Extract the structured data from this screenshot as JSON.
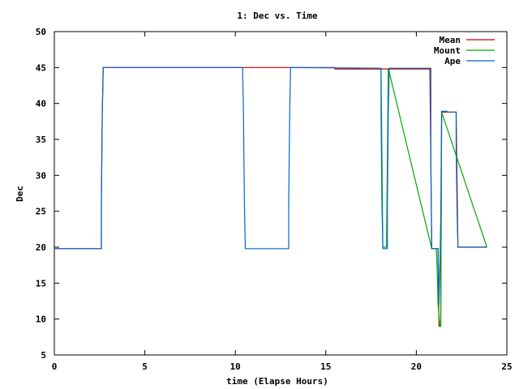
{
  "chart_data": {
    "type": "line",
    "title": "1: Dec vs. Time",
    "xlabel": "time (Elapse Hours)",
    "ylabel": "Dec",
    "xlim": [
      0,
      25
    ],
    "ylim": [
      5,
      50
    ],
    "xticks": [
      0,
      5,
      10,
      15,
      20,
      25
    ],
    "yticks": [
      5,
      10,
      15,
      20,
      25,
      30,
      35,
      40,
      45,
      50
    ],
    "grid": false,
    "legend_position": "top-right",
    "series": [
      {
        "name": "Mean",
        "color": "#cc0000",
        "points": [
          [
            0,
            19.8
          ],
          [
            2.6,
            19.8
          ],
          [
            2.6,
            26
          ],
          [
            2.65,
            38.5
          ],
          [
            2.7,
            45
          ],
          [
            7.5,
            45
          ],
          [
            13.05,
            45
          ],
          [
            15.5,
            45
          ],
          [
            15.5,
            44.8
          ],
          [
            18.05,
            44.8
          ],
          [
            18.5,
            44.8
          ],
          [
            20.75,
            44.8
          ],
          [
            20.85,
            19.8
          ],
          [
            21.2,
            19.8
          ],
          [
            21.25,
            9
          ],
          [
            21.35,
            9
          ],
          [
            21.4,
            38.8
          ],
          [
            21.7,
            38.8
          ],
          [
            22.2,
            38.8
          ],
          [
            22.3,
            20
          ],
          [
            23.9,
            20
          ]
        ]
      },
      {
        "name": "Mount",
        "color": "#00aa00",
        "points": [
          [
            18.05,
            44.9
          ],
          [
            18.15,
            20
          ],
          [
            18.35,
            20
          ],
          [
            18.45,
            44.9
          ],
          [
            20.85,
            19.8
          ],
          [
            21.1,
            19.8
          ],
          [
            21.15,
            17
          ],
          [
            21.2,
            12
          ],
          [
            21.3,
            9
          ],
          [
            21.35,
            9
          ],
          [
            21.4,
            38.8
          ],
          [
            23.9,
            20
          ]
        ]
      },
      {
        "name": "Ape",
        "color": "#0066cc",
        "points": [
          [
            0,
            19.8
          ],
          [
            2.6,
            19.8
          ],
          [
            2.6,
            26
          ],
          [
            2.65,
            38.8
          ],
          [
            2.7,
            45
          ],
          [
            10.4,
            45
          ],
          [
            10.45,
            39
          ],
          [
            10.5,
            26
          ],
          [
            10.55,
            19.8
          ],
          [
            12.95,
            19.8
          ],
          [
            12.95,
            26
          ],
          [
            13,
            38.5
          ],
          [
            13.05,
            45
          ],
          [
            18.05,
            44.9
          ],
          [
            18.05,
            38.5
          ],
          [
            18.1,
            26
          ],
          [
            18.15,
            19.8
          ],
          [
            18.4,
            19.8
          ],
          [
            18.4,
            26
          ],
          [
            18.45,
            38.5
          ],
          [
            18.5,
            44.9
          ],
          [
            20.8,
            44.9
          ],
          [
            20.8,
            32
          ],
          [
            20.85,
            19.8
          ],
          [
            21.2,
            19.8
          ],
          [
            21.25,
            12
          ],
          [
            21.3,
            17
          ],
          [
            21.35,
            24
          ],
          [
            21.4,
            38.9
          ],
          [
            21.7,
            38.9
          ],
          [
            21.7,
            38.8
          ],
          [
            22.2,
            38.8
          ],
          [
            22.2,
            34
          ],
          [
            22.25,
            25
          ],
          [
            22.3,
            20
          ],
          [
            23.9,
            20
          ]
        ]
      }
    ]
  }
}
